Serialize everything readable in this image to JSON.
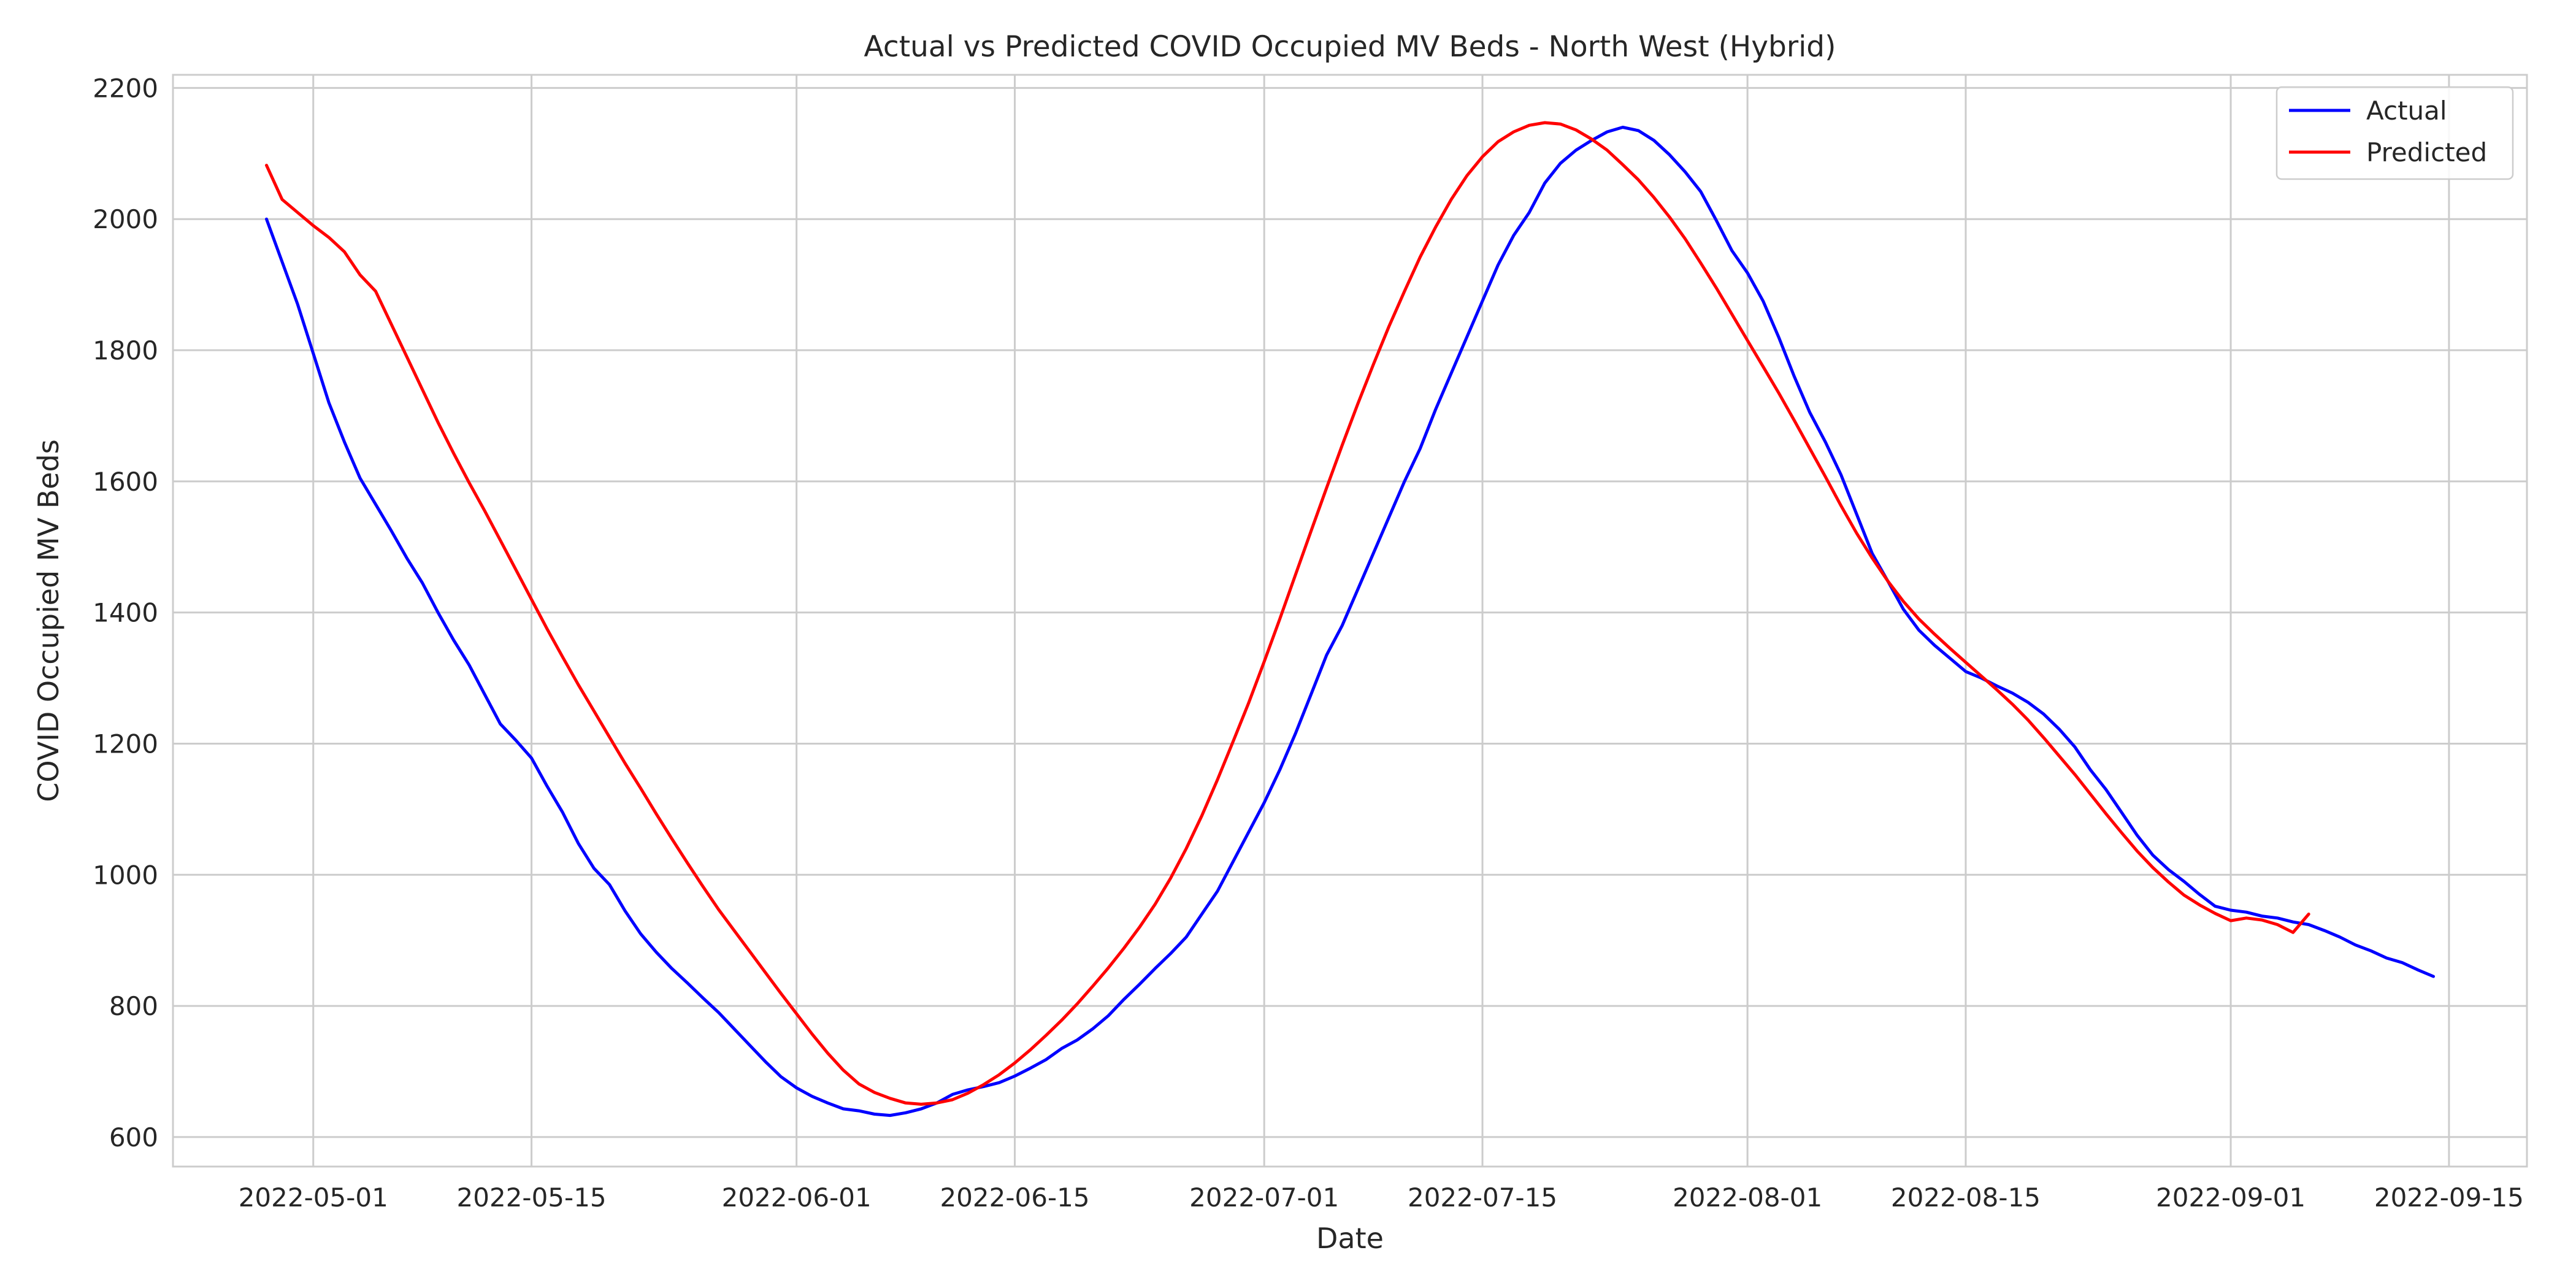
{
  "chart_data": {
    "type": "line",
    "title": "Actual vs Predicted COVID Occupied MV Beds - North West (Hybrid)",
    "xlabel": "Date",
    "ylabel": "COVID Occupied MV Beds",
    "x_start": "2022-04-28",
    "x_step_days": 1,
    "xlim": [
      "2022-04-22",
      "2022-09-20"
    ],
    "ylim": [
      555,
      2220
    ],
    "xticks": [
      "2022-05-01",
      "2022-05-15",
      "2022-06-01",
      "2022-06-15",
      "2022-07-01",
      "2022-07-15",
      "2022-08-01",
      "2022-08-15",
      "2022-09-01",
      "2022-09-15"
    ],
    "yticks": [
      600,
      800,
      1000,
      1200,
      1400,
      1600,
      1800,
      2000,
      2200
    ],
    "grid": true,
    "legend": "top-right",
    "series": [
      {
        "name": "Actual",
        "color": "#0000ff",
        "values": [
          2000,
          1935,
          1870,
          1795,
          1720,
          1660,
          1605,
          1565,
          1525,
          1483,
          1445,
          1400,
          1358,
          1320,
          1275,
          1230,
          1205,
          1178,
          1135,
          1095,
          1048,
          1010,
          985,
          945,
          910,
          882,
          857,
          835,
          812,
          790,
          765,
          740,
          715,
          692,
          675,
          662,
          652,
          643,
          640,
          635,
          633,
          637,
          643,
          652,
          665,
          672,
          677,
          683,
          693,
          705,
          718,
          735,
          748,
          765,
          785,
          810,
          833,
          857,
          880,
          905,
          940,
          975,
          1020,
          1065,
          1110,
          1160,
          1215,
          1275,
          1335,
          1380,
          1435,
          1490,
          1545,
          1600,
          1650,
          1710,
          1765,
          1820,
          1875,
          1930,
          1975,
          2010,
          2055,
          2085,
          2105,
          2120,
          2133,
          2140,
          2135,
          2120,
          2098,
          2072,
          2042,
          1998,
          1952,
          1918,
          1875,
          1820,
          1760,
          1705,
          1660,
          1610,
          1550,
          1490,
          1448,
          1405,
          1373,
          1350,
          1330,
          1310,
          1300,
          1288,
          1277,
          1263,
          1245,
          1222,
          1195,
          1160,
          1130,
          1095,
          1060,
          1030,
          1008,
          990,
          970,
          952,
          946,
          943,
          937,
          934,
          928,
          924,
          915,
          905,
          893,
          884,
          873,
          866,
          855,
          845
        ]
      },
      {
        "name": "Predicted",
        "color": "#ff0000",
        "values": [
          2082,
          2030,
          2010,
          1990,
          1972,
          1950,
          1915,
          1890,
          1840,
          1790,
          1740,
          1690,
          1643,
          1598,
          1555,
          1510,
          1465,
          1420,
          1375,
          1332,
          1290,
          1250,
          1210,
          1170,
          1132,
          1093,
          1055,
          1018,
          982,
          947,
          915,
          883,
          851,
          819,
          788,
          757,
          728,
          702,
          681,
          668,
          659,
          652,
          650,
          652,
          657,
          667,
          680,
          695,
          713,
          733,
          755,
          778,
          803,
          830,
          858,
          888,
          920,
          955,
          995,
          1040,
          1090,
          1145,
          1203,
          1262,
          1325,
          1390,
          1457,
          1524,
          1590,
          1655,
          1718,
          1778,
          1836,
          1890,
          1942,
          1988,
          2030,
          2066,
          2095,
          2118,
          2133,
          2143,
          2147,
          2145,
          2136,
          2122,
          2105,
          2083,
          2060,
          2033,
          2003,
          1970,
          1933,
          1895,
          1855,
          1815,
          1775,
          1735,
          1693,
          1650,
          1607,
          1563,
          1521,
          1483,
          1448,
          1417,
          1390,
          1367,
          1345,
          1324,
          1303,
          1282,
          1260,
          1236,
          1209,
          1181,
          1153,
          1123,
          1093,
          1064,
          1036,
          1011,
          989,
          969,
          954,
          941,
          930,
          934,
          931,
          924,
          912,
          940
        ]
      }
    ]
  }
}
